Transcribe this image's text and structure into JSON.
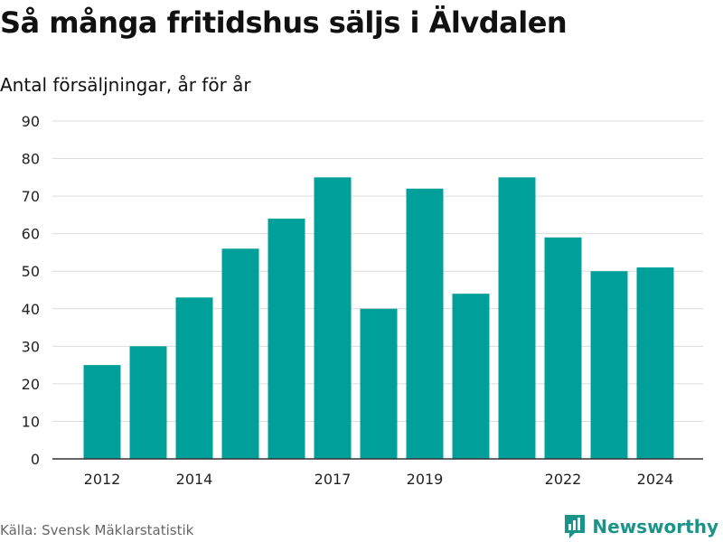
{
  "chart_data": {
    "type": "bar",
    "title": "Så många fritidshus säljs i Älvdalen",
    "subtitle": "Antal försäljningar, år för år",
    "x": [
      2012,
      2013,
      2014,
      2015,
      2016,
      2017,
      2018,
      2019,
      2020,
      2021,
      2022,
      2023,
      2024
    ],
    "values": [
      25,
      30,
      43,
      56,
      64,
      75,
      40,
      72,
      44,
      75,
      59,
      50,
      51
    ],
    "x_tick_labels": [
      "2012",
      "2014",
      "2017",
      "2019",
      "2022",
      "2024"
    ],
    "y_ticks": [
      0,
      10,
      20,
      30,
      40,
      50,
      60,
      70,
      80,
      90
    ],
    "ylim": [
      0,
      90
    ],
    "grid": true,
    "bar_color": "#00a09a",
    "source": "Källa: Svensk Mäklarstatistik"
  },
  "brand": {
    "name": "Newsworthy",
    "icon": "newsworthy-logo-icon",
    "color": "#1a9488"
  }
}
